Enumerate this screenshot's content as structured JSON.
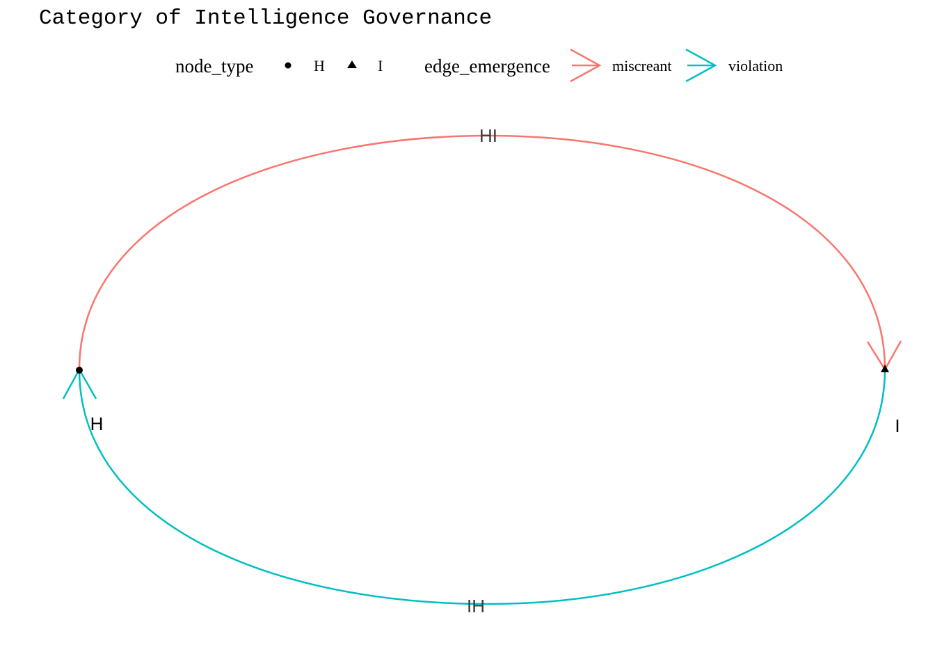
{
  "title": "Category of Intelligence Governance",
  "legend": {
    "node_type": {
      "title": "node_type",
      "entries": [
        {
          "label": "H",
          "shape": "circle"
        },
        {
          "label": "I",
          "shape": "triangle"
        }
      ]
    },
    "edge_emergence": {
      "title": "edge_emergence",
      "entries": [
        {
          "label": "miscreant",
          "color": "#F8766D"
        },
        {
          "label": "violation",
          "color": "#00BFC4"
        }
      ]
    }
  },
  "diagram": {
    "nodes": [
      {
        "id": "H",
        "label": "H",
        "shape": "circle"
      },
      {
        "id": "I",
        "label": "I",
        "shape": "triangle"
      }
    ],
    "edges": [
      {
        "label": "HI",
        "from": "H",
        "to": "I",
        "emergence": "miscreant",
        "color": "#F8766D"
      },
      {
        "label": "IH",
        "from": "I",
        "to": "H",
        "emergence": "violation",
        "color": "#00BFC4"
      }
    ]
  }
}
